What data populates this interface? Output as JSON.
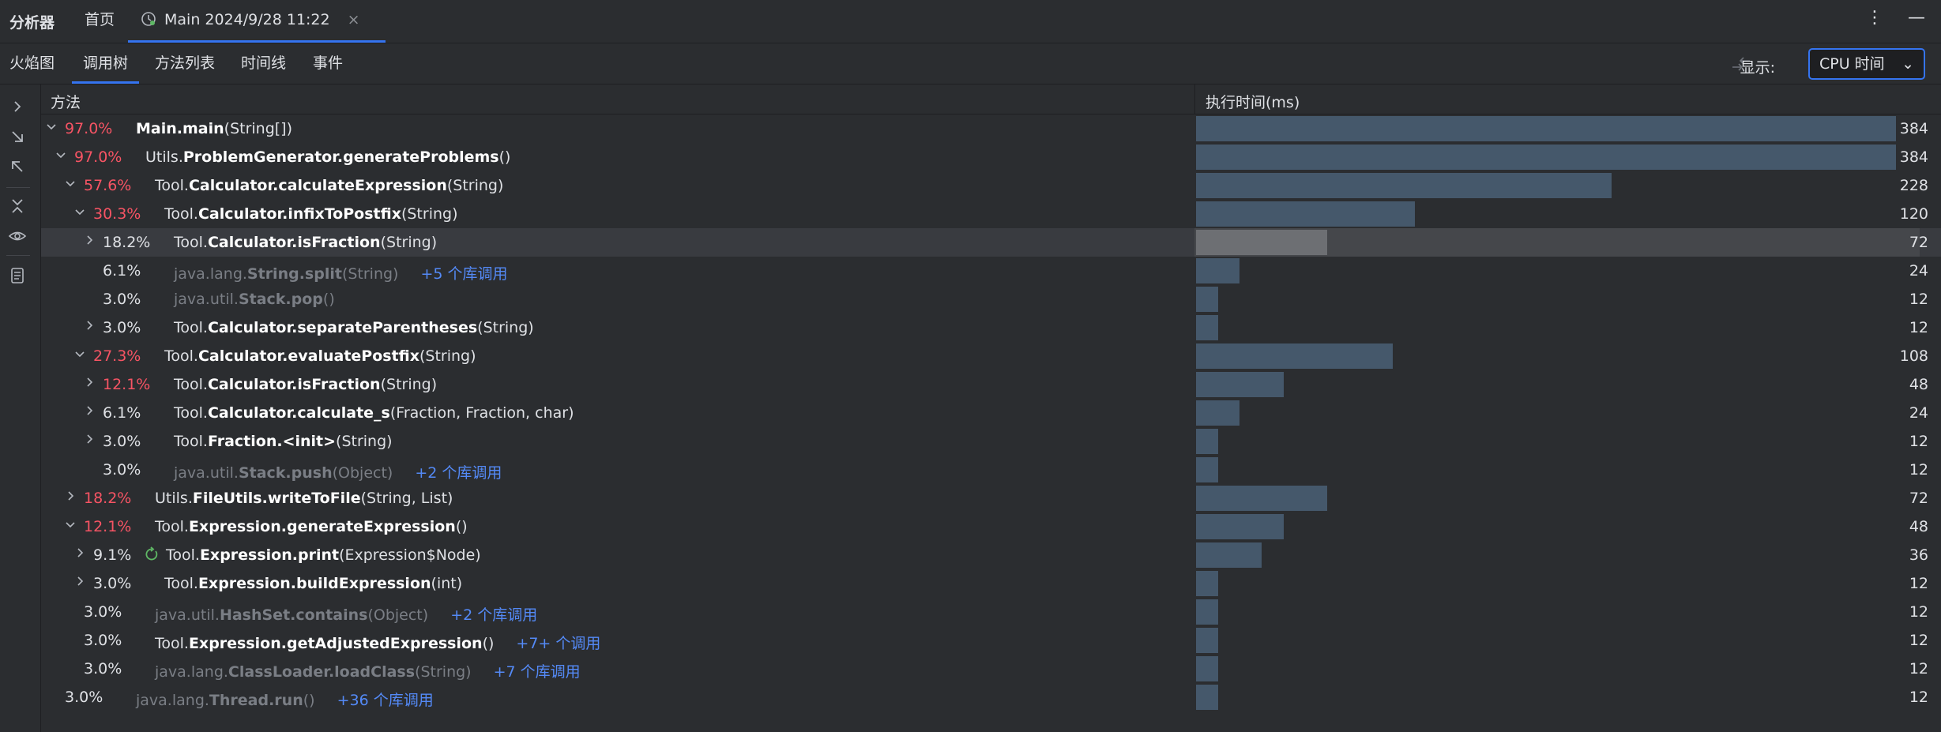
{
  "app": {
    "title": "分析器"
  },
  "tabs": [
    {
      "label": "首页"
    },
    {
      "label": "Main 2024/9/28 11:22",
      "close": "×"
    }
  ],
  "top_actions": {
    "more": "⋮",
    "minimize": "—"
  },
  "views": [
    {
      "label": "火焰图"
    },
    {
      "label": "调用树",
      "active": true
    },
    {
      "label": "方法列表"
    },
    {
      "label": "时间线"
    },
    {
      "label": "事件"
    }
  ],
  "display": {
    "label": "显示:",
    "value": "CPU 时间"
  },
  "columns": {
    "method": "方法",
    "time": "执行时间(ms)"
  },
  "max_value": 384,
  "rows": [
    {
      "pct": "97.0%",
      "hot": true,
      "chev": "down",
      "indent": 0,
      "pre": "",
      "name": "Main.main",
      "args": "(String[])",
      "calls": "",
      "lib": false,
      "recursive": false,
      "value": 384
    },
    {
      "pct": "97.0%",
      "hot": true,
      "chev": "down",
      "indent": 1,
      "pre": "Utils.",
      "name": "ProblemGenerator.generateProblems",
      "args": "()",
      "calls": "",
      "lib": false,
      "recursive": false,
      "value": 384
    },
    {
      "pct": "57.6%",
      "hot": true,
      "chev": "down",
      "indent": 2,
      "pre": "Tool.",
      "name": "Calculator.calculateExpression",
      "args": "(String)",
      "calls": "",
      "lib": false,
      "recursive": false,
      "value": 228
    },
    {
      "pct": "30.3%",
      "hot": true,
      "chev": "down",
      "indent": 3,
      "pre": "Tool.",
      "name": "Calculator.infixToPostfix",
      "args": "(String)",
      "calls": "",
      "lib": false,
      "recursive": false,
      "value": 120
    },
    {
      "pct": "18.2%",
      "hot": false,
      "chev": "right",
      "indent": 4,
      "pre": "Tool.",
      "name": "Calculator.isFraction",
      "args": "(String)",
      "calls": "",
      "lib": false,
      "recursive": false,
      "value": 72,
      "selected": true
    },
    {
      "pct": "6.1%",
      "hot": false,
      "chev": "none",
      "indent": 4,
      "pre": "java.lang.",
      "name": "String.split",
      "args": "(String)",
      "calls": "+5 个库调用",
      "lib": true,
      "recursive": false,
      "value": 24
    },
    {
      "pct": "3.0%",
      "hot": false,
      "chev": "none",
      "indent": 4,
      "pre": "java.util.",
      "name": "Stack.pop",
      "args": "()",
      "calls": "",
      "lib": true,
      "recursive": false,
      "value": 12
    },
    {
      "pct": "3.0%",
      "hot": false,
      "chev": "right",
      "indent": 4,
      "pre": "Tool.",
      "name": "Calculator.separateParentheses",
      "args": "(String)",
      "calls": "",
      "lib": false,
      "recursive": false,
      "value": 12
    },
    {
      "pct": "27.3%",
      "hot": true,
      "chev": "down",
      "indent": 3,
      "pre": "Tool.",
      "name": "Calculator.evaluatePostfix",
      "args": "(String)",
      "calls": "",
      "lib": false,
      "recursive": false,
      "value": 108
    },
    {
      "pct": "12.1%",
      "hot": true,
      "chev": "right",
      "indent": 4,
      "pre": "Tool.",
      "name": "Calculator.isFraction",
      "args": "(String)",
      "calls": "",
      "lib": false,
      "recursive": false,
      "value": 48
    },
    {
      "pct": "6.1%",
      "hot": false,
      "chev": "right",
      "indent": 4,
      "pre": "Tool.",
      "name": "Calculator.calculate_s",
      "args": "(Fraction, Fraction, char)",
      "calls": "",
      "lib": false,
      "recursive": false,
      "value": 24
    },
    {
      "pct": "3.0%",
      "hot": false,
      "chev": "right",
      "indent": 4,
      "pre": "Tool.",
      "name": "Fraction.<init>",
      "args": "(String)",
      "calls": "",
      "lib": false,
      "recursive": false,
      "value": 12
    },
    {
      "pct": "3.0%",
      "hot": false,
      "chev": "none",
      "indent": 4,
      "pre": "java.util.",
      "name": "Stack.push",
      "args": "(Object)",
      "calls": "+2 个库调用",
      "lib": true,
      "recursive": false,
      "value": 12
    },
    {
      "pct": "18.2%",
      "hot": true,
      "chev": "right",
      "indent": 2,
      "pre": "Utils.",
      "name": "FileUtils.writeToFile",
      "args": "(String, List)",
      "calls": "",
      "lib": false,
      "recursive": false,
      "value": 72
    },
    {
      "pct": "12.1%",
      "hot": true,
      "chev": "down",
      "indent": 2,
      "pre": "Tool.",
      "name": "Expression.generateExpression",
      "args": "()",
      "calls": "",
      "lib": false,
      "recursive": false,
      "value": 48
    },
    {
      "pct": "9.1%",
      "hot": false,
      "chev": "right",
      "indent": 3,
      "pre": "Tool.",
      "name": "Expression.print",
      "args": "(Expression$Node)",
      "calls": "",
      "lib": false,
      "recursive": true,
      "value": 36
    },
    {
      "pct": "3.0%",
      "hot": false,
      "chev": "right",
      "indent": 3,
      "pre": "Tool.",
      "name": "Expression.buildExpression",
      "args": "(int)",
      "calls": "",
      "lib": false,
      "recursive": false,
      "value": 12
    },
    {
      "pct": "3.0%",
      "hot": false,
      "chev": "none",
      "indent": 2,
      "pre": "java.util.",
      "name": "HashSet.contains",
      "args": "(Object)",
      "calls": "+2 个库调用",
      "lib": true,
      "recursive": false,
      "value": 12
    },
    {
      "pct": "3.0%",
      "hot": false,
      "chev": "none",
      "indent": 2,
      "pre": "Tool.",
      "name": "Expression.getAdjustedExpression",
      "args": "()",
      "calls": "+7+ 个调用",
      "lib": false,
      "recursive": false,
      "value": 12
    },
    {
      "pct": "3.0%",
      "hot": false,
      "chev": "none",
      "indent": 2,
      "pre": "java.lang.",
      "name": "ClassLoader.loadClass",
      "args": "(String)",
      "calls": "+7 个库调用",
      "lib": true,
      "recursive": false,
      "value": 12
    },
    {
      "pct": "3.0%",
      "hot": false,
      "chev": "none",
      "indent": 0,
      "pre": "java.lang.",
      "name": "Thread.run",
      "args": "()",
      "calls": "+36 个库调用",
      "lib": true,
      "recursive": false,
      "value": 12
    }
  ]
}
